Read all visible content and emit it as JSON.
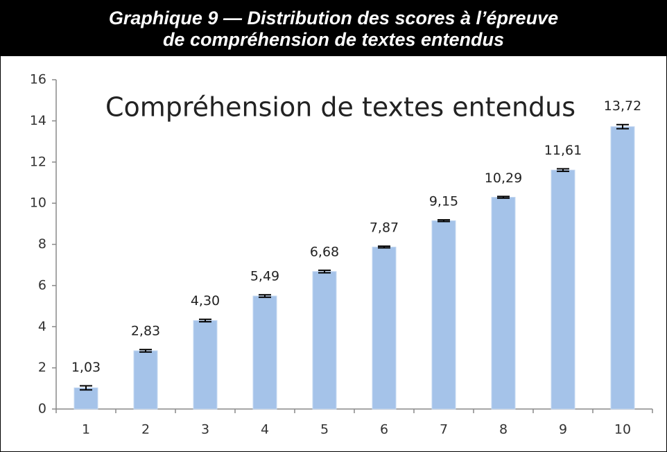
{
  "header": {
    "title": "Graphique 9 — Distribution des scores à l’épreuve de compréhension de textes entendus"
  },
  "chart_data": {
    "type": "bar",
    "title": "Compréhension de textes entendus",
    "categories": [
      "1",
      "2",
      "3",
      "4",
      "5",
      "6",
      "7",
      "8",
      "9",
      "10"
    ],
    "values": [
      1.03,
      2.83,
      4.3,
      5.49,
      6.68,
      7.87,
      9.15,
      10.29,
      11.61,
      13.72
    ],
    "value_labels": [
      "1,03",
      "2,83",
      "4,30",
      "5,49",
      "6,68",
      "7,87",
      "9,15",
      "10,29",
      "11,61",
      "13,72"
    ],
    "errors": [
      0.1,
      0.06,
      0.06,
      0.06,
      0.06,
      0.04,
      0.04,
      0.04,
      0.06,
      0.1
    ],
    "color": "#a5c3e9",
    "ylim": [
      0,
      16
    ],
    "yticks": [
      0,
      2,
      4,
      6,
      8,
      10,
      12,
      14,
      16
    ],
    "grid": false
  }
}
